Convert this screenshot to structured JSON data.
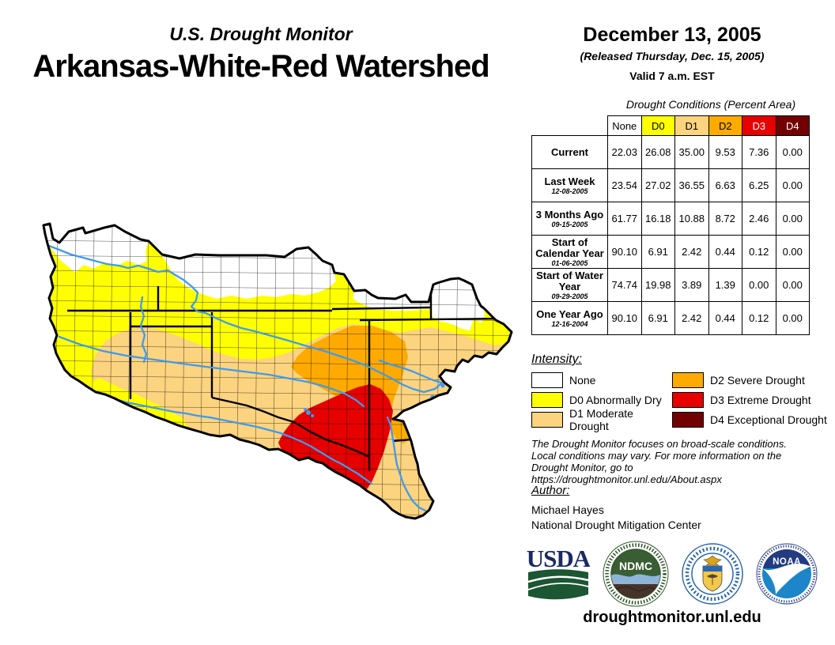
{
  "header": {
    "brand": "U.S. Drought Monitor",
    "region": "Arkansas-White-Red Watershed",
    "date": "December 13, 2005",
    "released": "(Released Thursday, Dec. 15, 2005)",
    "valid": "Valid 7 a.m. EST"
  },
  "table": {
    "caption": "Drought Conditions (Percent Area)",
    "columns": [
      {
        "label": "None",
        "bg": "#FFFFFF",
        "fg": "#000000"
      },
      {
        "label": "D0",
        "bg": "#FFFF00",
        "fg": "#000000"
      },
      {
        "label": "D1",
        "bg": "#FCD37F",
        "fg": "#000000"
      },
      {
        "label": "D2",
        "bg": "#FFAA00",
        "fg": "#000000"
      },
      {
        "label": "D3",
        "bg": "#E60000",
        "fg": "#FFFFFF"
      },
      {
        "label": "D4",
        "bg": "#730000",
        "fg": "#FFFFFF"
      }
    ],
    "rows": [
      {
        "label": "Current",
        "date": "",
        "values": [
          "22.03",
          "26.08",
          "35.00",
          "9.53",
          "7.36",
          "0.00"
        ]
      },
      {
        "label": "Last Week",
        "date": "12-08-2005",
        "values": [
          "23.54",
          "27.02",
          "36.55",
          "6.63",
          "6.25",
          "0.00"
        ]
      },
      {
        "label": "3 Months Ago",
        "date": "09-15-2005",
        "values": [
          "61.77",
          "16.18",
          "10.88",
          "8.72",
          "2.46",
          "0.00"
        ]
      },
      {
        "label": "Start of Calendar Year",
        "date": "01-06-2005",
        "values": [
          "90.10",
          "6.91",
          "2.42",
          "0.44",
          "0.12",
          "0.00"
        ]
      },
      {
        "label": "Start of Water Year",
        "date": "09-29-2005",
        "values": [
          "74.74",
          "19.98",
          "3.89",
          "1.39",
          "0.00",
          "0.00"
        ]
      },
      {
        "label": "One Year Ago",
        "date": "12-16-2004",
        "values": [
          "90.10",
          "6.91",
          "2.42",
          "0.44",
          "0.12",
          "0.00"
        ]
      }
    ]
  },
  "legend": {
    "heading": "Intensity:",
    "items": [
      {
        "label": "None",
        "color": "#FFFFFF"
      },
      {
        "label": "D0 Abnormally Dry",
        "color": "#FFFF00"
      },
      {
        "label": "D1 Moderate Drought",
        "color": "#FCD37F"
      },
      {
        "label": "D2 Severe Drought",
        "color": "#FFAA00"
      },
      {
        "label": "D3 Extreme Drought",
        "color": "#E60000"
      },
      {
        "label": "D4 Exceptional Drought",
        "color": "#730000"
      }
    ]
  },
  "disclaimer": {
    "lines": [
      "The Drought Monitor focuses on broad-scale conditions.",
      "Local conditions may vary. For more information on the",
      "Drought Monitor, go to https://droughtmonitor.unl.edu/About.aspx"
    ]
  },
  "author": {
    "heading": "Author:",
    "name": "Michael Hayes",
    "org": "National Drought Mitigation Center"
  },
  "footer": {
    "url": "droughtmonitor.unl.edu"
  },
  "logos": [
    {
      "name": "USDA",
      "text": "USDA"
    },
    {
      "name": "National Drought Mitigation Center",
      "text": "NDMC"
    },
    {
      "name": "U.S. Department of Commerce",
      "text": ""
    },
    {
      "name": "NOAA",
      "text": "NOAA"
    }
  ],
  "map": {
    "title": "Arkansas-White-Red Watershed drought map",
    "palette": {
      "none": "#FFFFFF",
      "d0": "#FFFF00",
      "d1": "#FCD37F",
      "d2": "#FFAA00",
      "d3": "#E60000",
      "d4": "#730000"
    },
    "river_color": "#3D9BF0",
    "border_color": "#000000"
  }
}
